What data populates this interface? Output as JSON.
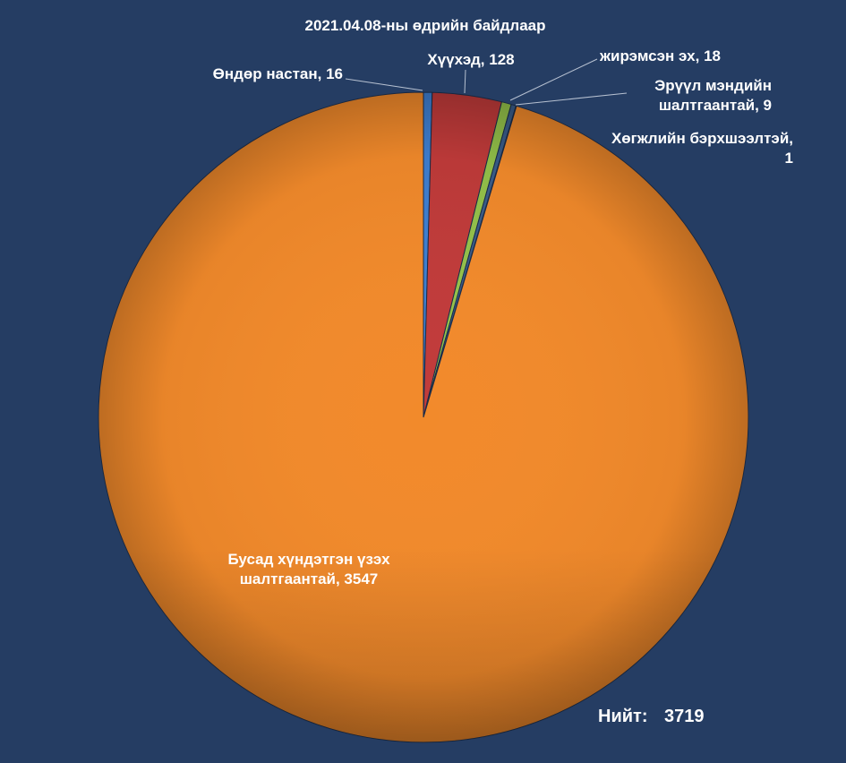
{
  "chart_data": {
    "type": "pie",
    "title": "2021.04.08-ны өдрийн байдлаар",
    "slices": [
      {
        "label_lines": [
          "Өндөр настан, 16"
        ],
        "value": 16,
        "color": "#3f7fd1"
      },
      {
        "label_lines": [
          "Хүүхэд, 128"
        ],
        "value": 128,
        "color": "#c13b3a"
      },
      {
        "label_lines": [
          "жирэмсэн эх, 18"
        ],
        "value": 18,
        "color": "#94c24a"
      },
      {
        "label_lines": [
          "Эрүүл мэндийн",
          "шалтгаантай, 9"
        ],
        "value": 9,
        "color": "#3a5d8a"
      },
      {
        "label_lines": [
          "Хөгжлийн бэрхшээлтэй,",
          "1"
        ],
        "value": 1,
        "color": "#111111"
      },
      {
        "label_lines": [
          "Бусад хүндэтгэн үзэх",
          "шалтгаантай, 3547"
        ],
        "value": 3547,
        "color": "#f28a2b"
      }
    ],
    "total_label": "Нийт:",
    "total_value": "3719"
  }
}
